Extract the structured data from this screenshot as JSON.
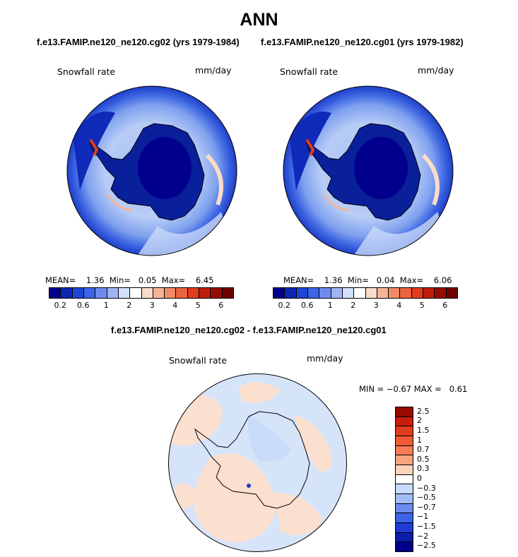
{
  "figure": {
    "title": "ANN",
    "left_title": "f.e13.FAMIP.ne120_ne120.cg02 (yrs 1979-1984)",
    "right_title": "f.e13.FAMIP.ne120_ne120.cg01 (yrs 1979-1982)",
    "diff_title": "f.e13.FAMIP.ne120_ne120.cg02 - f.e13.FAMIP.ne120_ne120.cg01"
  },
  "panels": {
    "left": {
      "variable": "Snowfall rate",
      "units": "mm/day",
      "stats": {
        "mean_label": "MEAN=",
        "mean": "1.36",
        "min_label": "Min=",
        "min": "0.05",
        "max_label": "Max=",
        "max": "6.45"
      }
    },
    "right": {
      "variable": "Snowfall rate",
      "units": "mm/day",
      "stats": {
        "mean_label": "MEAN=",
        "mean": "1.36",
        "min_label": "Min=",
        "min": "0.04",
        "max_label": "Max=",
        "max": "6.06"
      }
    },
    "diff": {
      "variable": "Snowfall rate",
      "units": "mm/day",
      "stats": {
        "min_label": "MIN =",
        "min": "−0.67",
        "max_label": "MAX =",
        "max": "0.61"
      }
    }
  },
  "colorbars": {
    "abs": {
      "colors": [
        "#00008c",
        "#0a28b4",
        "#1e46d2",
        "#3c64e6",
        "#6e8cf0",
        "#a0b4f5",
        "#d2e1fa",
        "#ffffff",
        "#fadcc8",
        "#f5b496",
        "#f08c64",
        "#ec6440",
        "#e03c1e",
        "#c01e0a",
        "#960a00",
        "#6e0000"
      ],
      "tick_labels": [
        "0.2",
        "0.6",
        "1",
        "2",
        "3",
        "4",
        "5",
        "6"
      ],
      "tick_box_index": [
        1,
        3,
        5,
        7,
        9,
        11,
        13,
        15
      ]
    },
    "diff": {
      "colors_top_to_bottom": [
        "#960a00",
        "#c81e0a",
        "#e03c1e",
        "#f05a32",
        "#f57d55",
        "#f8a57d",
        "#fcd2b9",
        "#ffffff",
        "#c8dcfa",
        "#a0bef5",
        "#6e8cf0",
        "#3c64e6",
        "#1e3cd2",
        "#0a1eaa",
        "#00008c"
      ],
      "tick_labels_top_to_bottom": [
        "2.5",
        "2",
        "1.5",
        "1",
        "0.7",
        "0.5",
        "0.3",
        "0",
        "−0.3",
        "−0.5",
        "−0.7",
        "−1",
        "−1.5",
        "−2",
        "−2.5"
      ]
    }
  }
}
